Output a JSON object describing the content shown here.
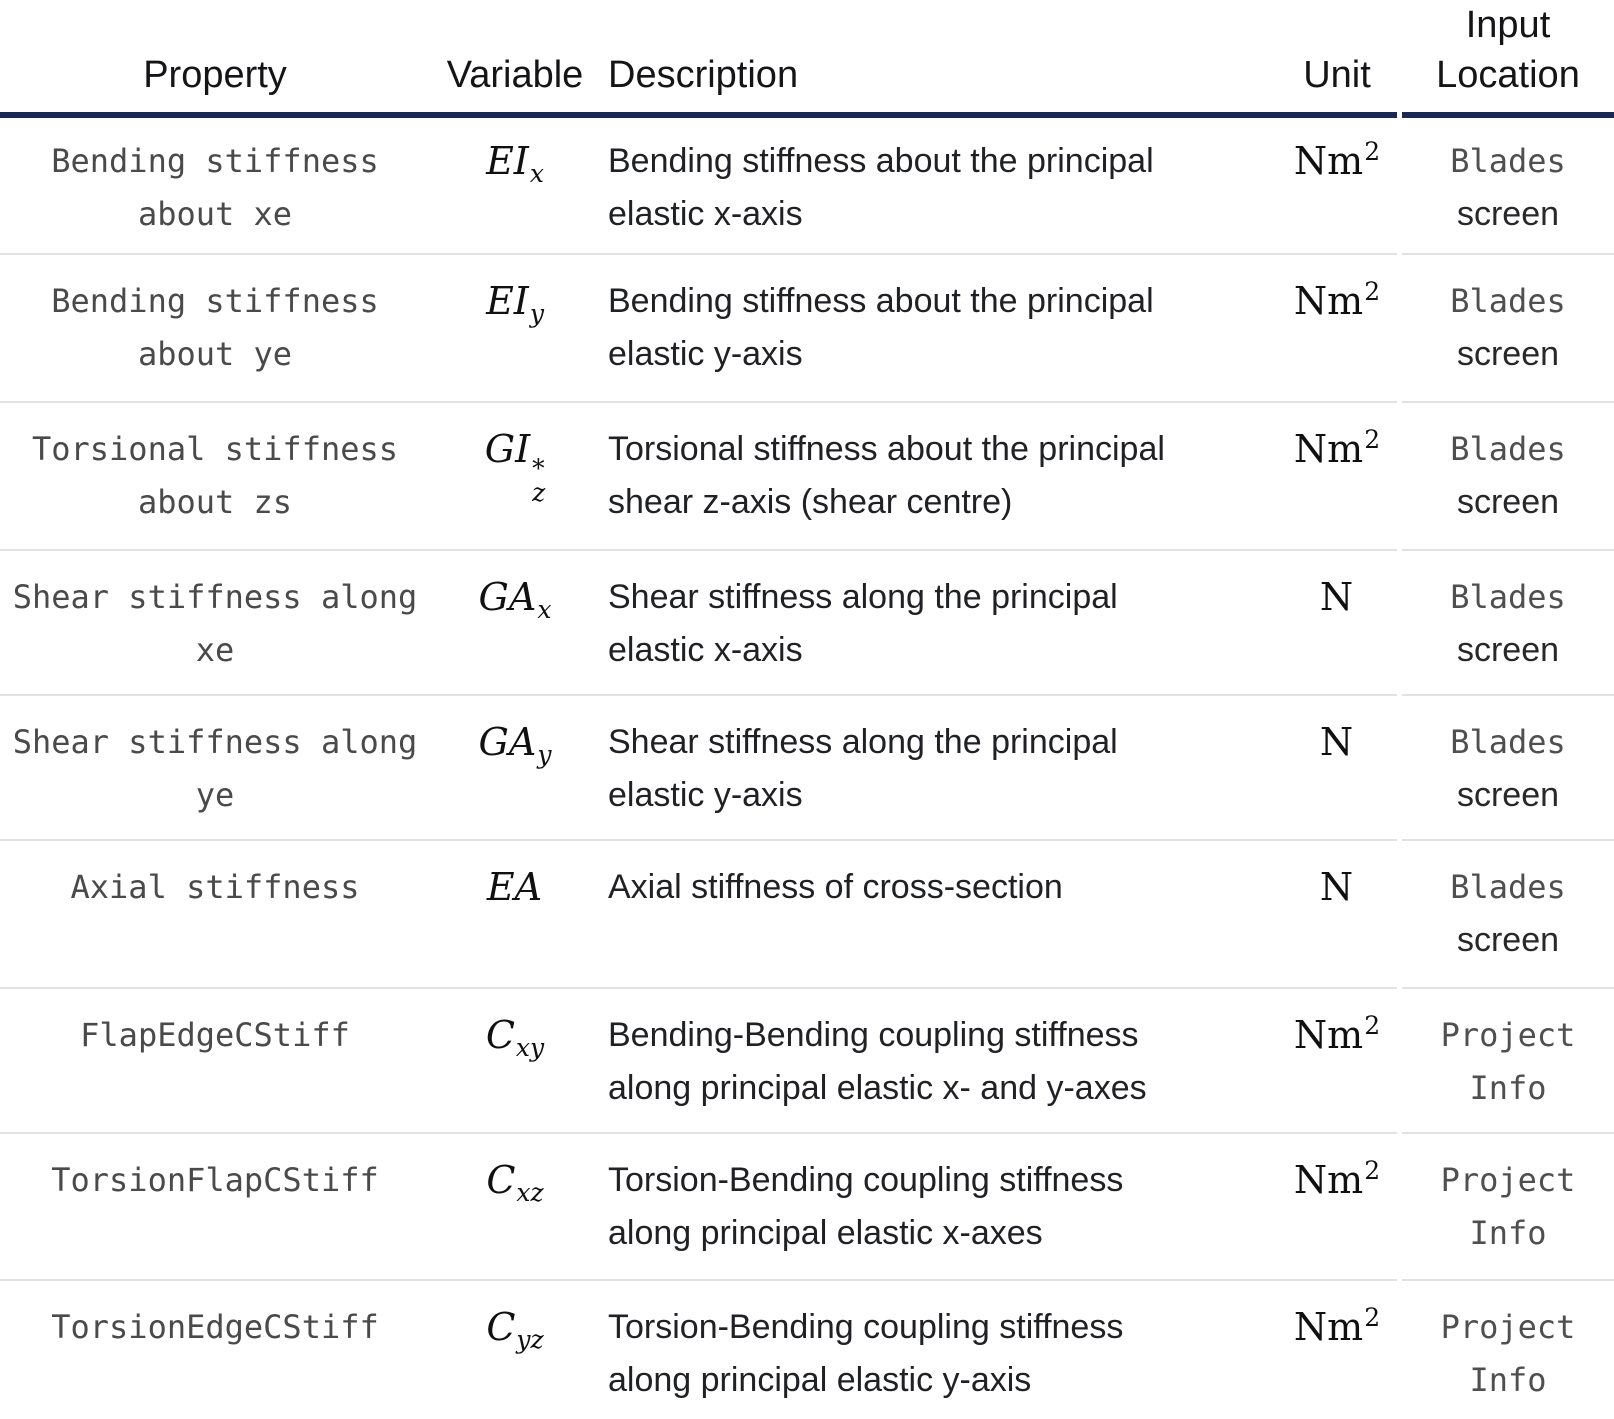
{
  "colors": {
    "header_rule": "#1a2951",
    "row_separator": "#e2e2e2",
    "property_text": "#4a4a4a",
    "body_text": "#202124"
  },
  "header": {
    "property": "Property",
    "variable": "Variable",
    "description": "Description",
    "unit": "Unit",
    "input_location": "Input Location"
  },
  "rows": [
    {
      "property": "Bending stiffness about xe",
      "variable": {
        "base": "EI",
        "sub": "x"
      },
      "description_lines": [
        "Bending stiffness about the principal",
        "elastic x-axis"
      ],
      "unit": {
        "base": "Nm",
        "sup": "2"
      },
      "location": {
        "line1": "Blades",
        "line2": "screen"
      }
    },
    {
      "property": "Bending stiffness about ye",
      "variable": {
        "base": "EI",
        "sub": "y"
      },
      "description_lines": [
        "Bending stiffness about the principal",
        "elastic y-axis"
      ],
      "unit": {
        "base": "Nm",
        "sup": "2"
      },
      "location": {
        "line1": "Blades",
        "line2": "screen"
      }
    },
    {
      "property": "Torsional stiffness about zs",
      "variable": {
        "base": "GI",
        "sup": "*",
        "sub": "z"
      },
      "description_lines": [
        "Torsional stiffness about the principal",
        "shear z-axis (shear centre)"
      ],
      "unit": {
        "base": "Nm",
        "sup": "2"
      },
      "location": {
        "line1": "Blades",
        "line2": "screen"
      }
    },
    {
      "property": "Shear stiffness along xe",
      "variable": {
        "base": "GA",
        "sub": "x"
      },
      "description_lines": [
        "Shear stiffness along the principal",
        "elastic x-axis"
      ],
      "unit": {
        "base": "N",
        "sup": ""
      },
      "location": {
        "line1": "Blades",
        "line2": "screen"
      }
    },
    {
      "property": "Shear stiffness along ye",
      "variable": {
        "base": "GA",
        "sub": "y"
      },
      "description_lines": [
        "Shear stiffness along the principal",
        "elastic y-axis"
      ],
      "unit": {
        "base": "N",
        "sup": ""
      },
      "location": {
        "line1": "Blades",
        "line2": "screen"
      }
    },
    {
      "property": "Axial stiffness",
      "variable": {
        "base": "EA",
        "sub": ""
      },
      "description_lines": [
        "Axial stiffness of cross-section"
      ],
      "unit": {
        "base": "N",
        "sup": ""
      },
      "location": {
        "line1": "Blades",
        "line2": "screen"
      }
    },
    {
      "property": "FlapEdgeCStiff",
      "variable": {
        "base": "C",
        "sub": "xy"
      },
      "description_lines": [
        "Bending-Bending coupling stiffness",
        "along principal elastic x- and y-axes"
      ],
      "unit": {
        "base": "Nm",
        "sup": "2"
      },
      "location": {
        "line1": "Project",
        "line2": "Info"
      }
    },
    {
      "property": "TorsionFlapCStiff",
      "variable": {
        "base": "C",
        "sub": "xz"
      },
      "description_lines": [
        "Torsion-Bending coupling stiffness",
        "along principal elastic x-axes"
      ],
      "unit": {
        "base": "Nm",
        "sup": "2"
      },
      "location": {
        "line1": "Project",
        "line2": "Info"
      }
    },
    {
      "property": "TorsionEdgeCStiff",
      "variable": {
        "base": "C",
        "sub": "yz"
      },
      "description_lines": [
        "Torsion-Bending coupling stiffness",
        "along principal elastic y-axis"
      ],
      "unit": {
        "base": "Nm",
        "sup": "2"
      },
      "location": {
        "line1": "Project",
        "line2": "Info"
      }
    }
  ]
}
